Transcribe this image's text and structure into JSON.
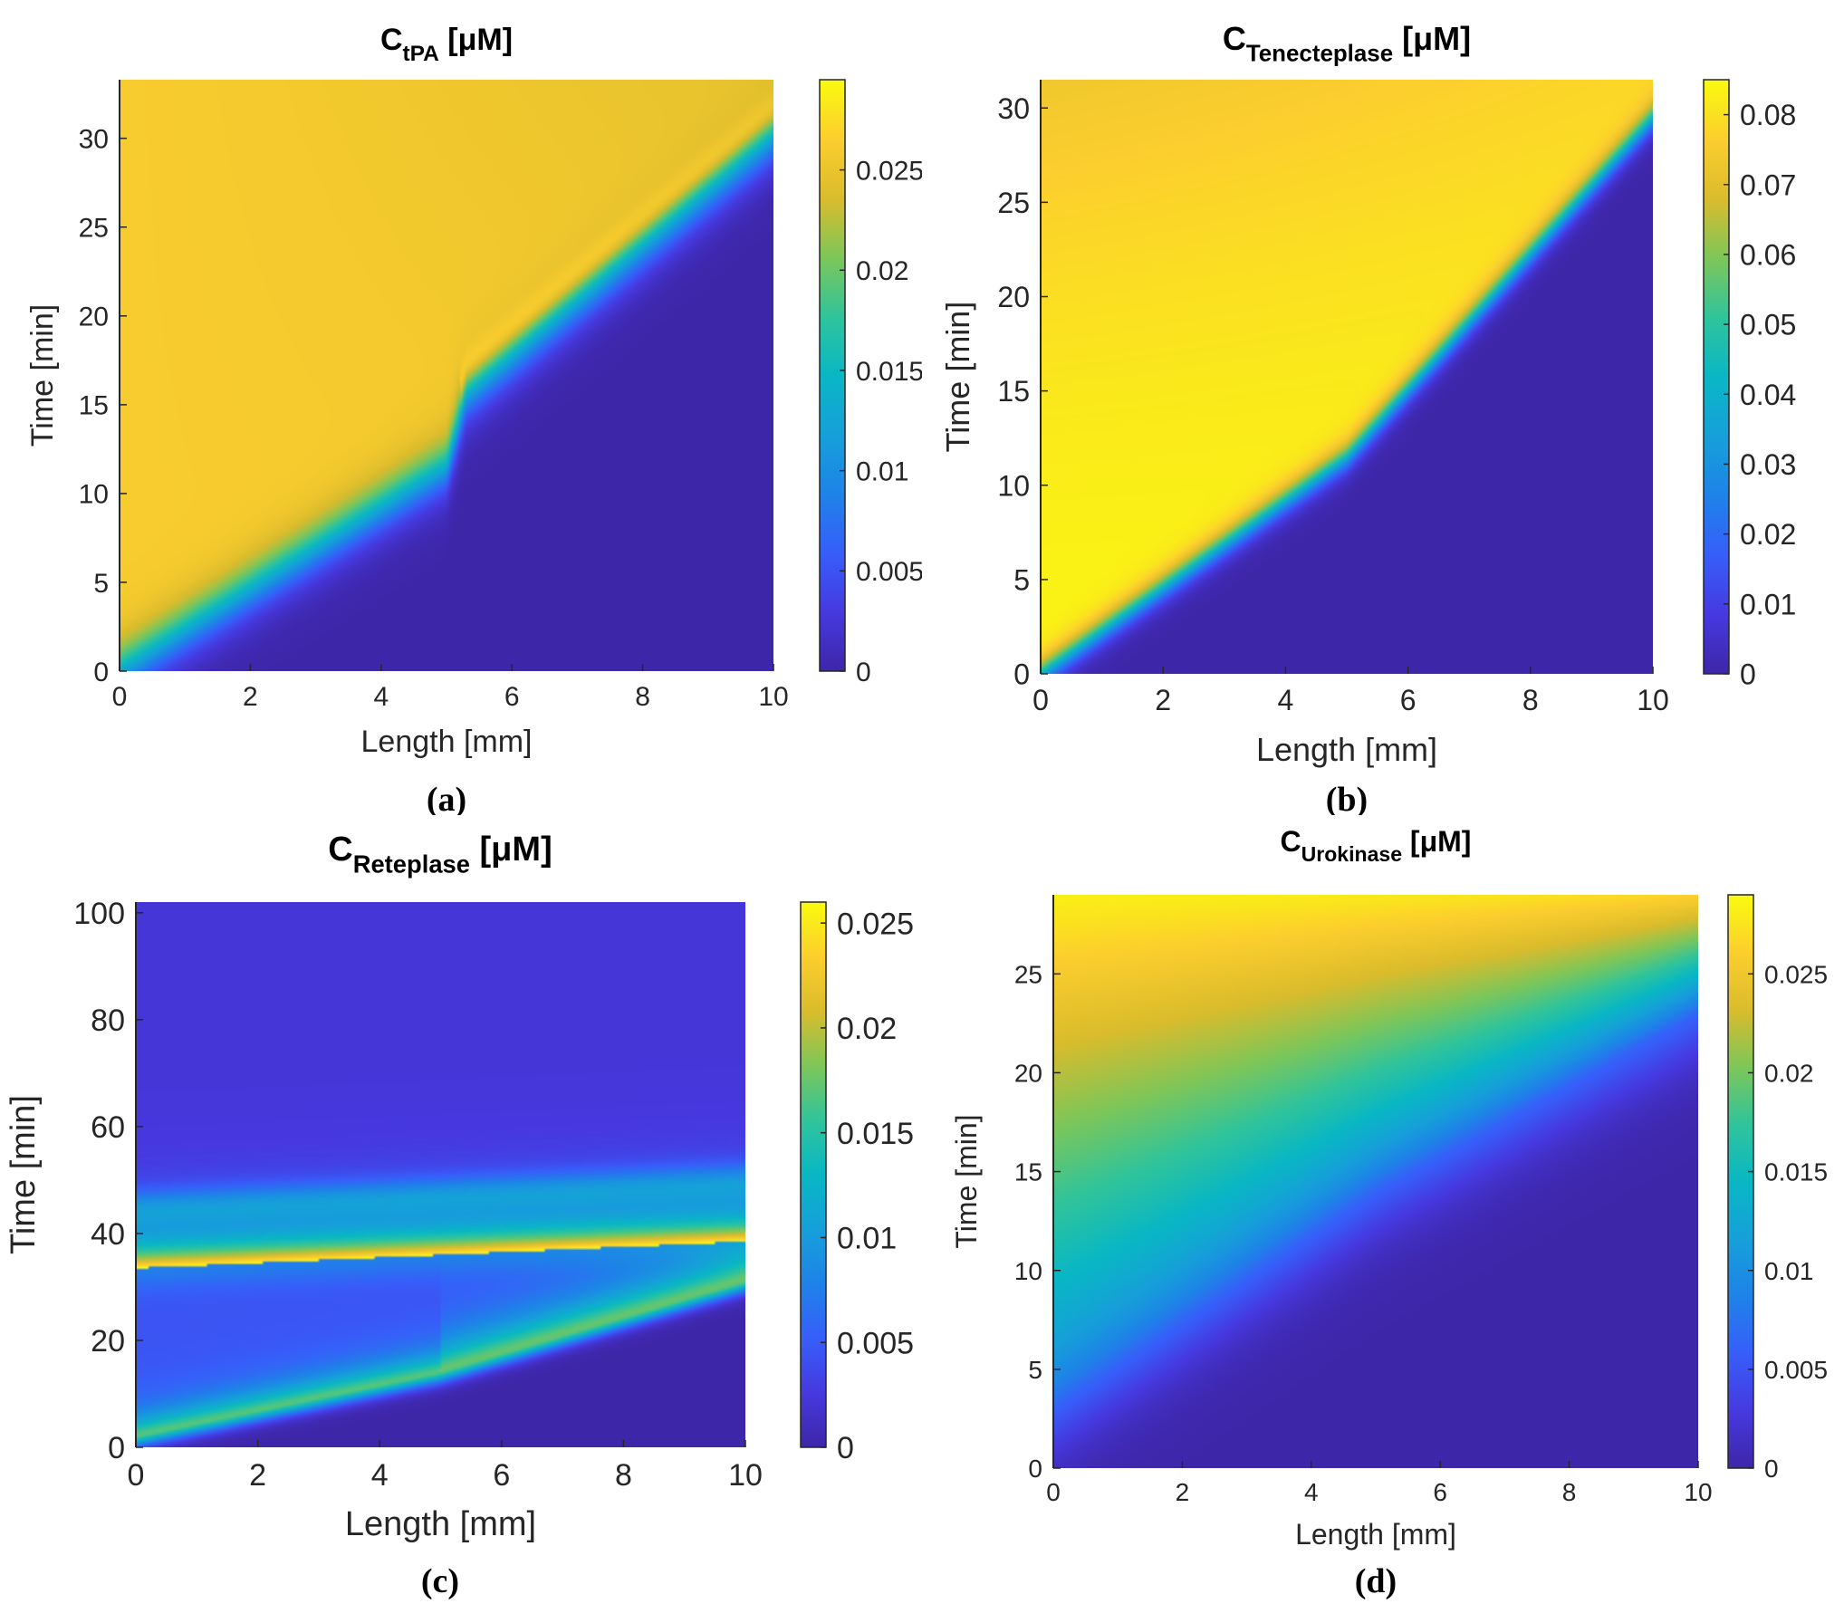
{
  "chart_data": [
    {
      "type": "heatmap",
      "panel_label": "(a)",
      "title": {
        "main": "C",
        "sub": "tPA",
        "unit": "[μM]"
      },
      "xlabel": "Length [mm]",
      "ylabel": "Time [min]",
      "xlim": [
        0,
        10
      ],
      "ylim": [
        0,
        33.3
      ],
      "x_ticks": [
        0,
        2,
        4,
        6,
        8,
        10
      ],
      "y_ticks": [
        0,
        5,
        10,
        15,
        20,
        25,
        30
      ],
      "colorbar": {
        "min": 0,
        "max": 0.0295,
        "ticks": [
          0,
          0.005,
          0.01,
          0.015,
          0.02,
          0.025
        ],
        "tick_labels": [
          "0",
          "0.005",
          "0.01",
          "0.015",
          "0.02",
          "0.025"
        ]
      },
      "front_curve": {
        "length_mm": [
          0,
          5,
          5.3,
          10
        ],
        "time_min": [
          0,
          11.5,
          15.5,
          30
        ]
      },
      "notes": "Concentration ~0.026 above the moving front, 0 below; bright ridge (~0.029) along front for length > 5 mm"
    },
    {
      "type": "heatmap",
      "panel_label": "(b)",
      "title": {
        "main": "C",
        "sub": "Tenecteplase",
        "unit": "[μM]"
      },
      "xlabel": "Length [mm]",
      "ylabel": "Time [min]",
      "xlim": [
        0,
        10
      ],
      "ylim": [
        0,
        31.5
      ],
      "x_ticks": [
        0,
        2,
        4,
        6,
        8,
        10
      ],
      "y_ticks": [
        0,
        5,
        10,
        15,
        20,
        25,
        30
      ],
      "colorbar": {
        "min": 0,
        "max": 0.085,
        "ticks": [
          0,
          0.01,
          0.02,
          0.03,
          0.04,
          0.05,
          0.06,
          0.07,
          0.08
        ],
        "tick_labels": [
          "0",
          "0.01",
          "0.02",
          "0.03",
          "0.04",
          "0.05",
          "0.06",
          "0.07",
          "0.08"
        ]
      },
      "front_curve": {
        "length_mm": [
          0,
          5,
          10
        ],
        "time_min": [
          0,
          11.5,
          29.5
        ]
      },
      "notes": "Concentration ~0.082 above the front, decreasing toward ~0.075 at late times; 0 below front"
    },
    {
      "type": "heatmap",
      "panel_label": "(c)",
      "title": {
        "main": "C",
        "sub": "Reteplase",
        "unit": "[μM]"
      },
      "xlabel": "Length [mm]",
      "ylabel": "Time [min]",
      "xlim": [
        0,
        10
      ],
      "ylim": [
        0,
        102
      ],
      "x_ticks": [
        0,
        2,
        4,
        6,
        8,
        10
      ],
      "y_ticks": [
        0,
        20,
        40,
        60,
        80,
        100
      ],
      "colorbar": {
        "min": 0,
        "max": 0.026,
        "ticks": [
          0,
          0.005,
          0.01,
          0.015,
          0.02,
          0.025
        ],
        "tick_labels": [
          "0",
          "0.005",
          "0.01",
          "0.015",
          "0.02",
          "0.025"
        ]
      },
      "front_curve": {
        "length_mm": [
          0,
          5,
          10
        ],
        "time_min": [
          1,
          13,
          30
        ]
      },
      "dose_line": {
        "length_mm": [
          0,
          10
        ],
        "time_min": [
          33.5,
          38.5
        ]
      },
      "notes": "Band of ~0.022 just above the front; second bolus band ~0.025 near 33-42 min decaying to ~0.002 by 100 min"
    },
    {
      "type": "heatmap",
      "panel_label": "(d)",
      "title": {
        "main": "C",
        "sub": "Urokinase",
        "unit": "[μM]"
      },
      "xlabel": "Length [mm]",
      "ylabel": "Time [min]",
      "xlim": [
        0,
        10
      ],
      "ylim": [
        0,
        29
      ],
      "x_ticks": [
        0,
        2,
        4,
        6,
        8,
        10
      ],
      "y_ticks": [
        0,
        5,
        10,
        15,
        20,
        25
      ],
      "colorbar": {
        "min": 0,
        "max": 0.029,
        "ticks": [
          0,
          0.005,
          0.01,
          0.015,
          0.02,
          0.025
        ],
        "tick_labels": [
          "0",
          "0.005",
          "0.01",
          "0.015",
          "0.02",
          "0.025"
        ]
      },
      "front_curve": {
        "length_mm": [
          0,
          5,
          10
        ],
        "time_min": [
          2,
          13,
          22
        ]
      },
      "notes": "Diffuse gradient: 0 below front, ~0.01 just above, rising to ~0.029 at top"
    }
  ],
  "colormap": "parula",
  "colors": {
    "low": "#3e26a8",
    "high": "#f9fb0e"
  }
}
